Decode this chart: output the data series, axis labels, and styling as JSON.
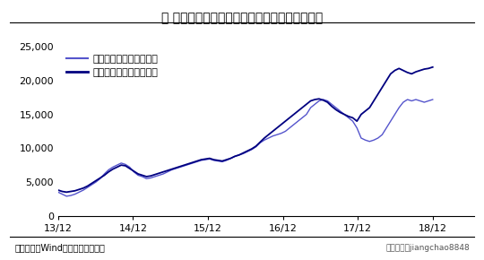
{
  "title": "图 外资持有中国股票和债券金额（亿元人民币）",
  "xtick_labels": [
    "13/12",
    "14/12",
    "15/12",
    "16/12",
    "17/12",
    "18/12"
  ],
  "legend_stocks": "境外机构和个人持有股票",
  "legend_bonds": "境外机构和个人持有债券",
  "source_text": "资料来源：Wind，海通证券研究所",
  "watermark": "一微信号：jiangchao8848",
  "color_stocks": "#5555cc",
  "color_bonds": "#000080",
  "background_color": "#ffffff",
  "title_fontsize": 10,
  "legend_fontsize": 8,
  "tick_fontsize": 8,
  "ylim": [
    0,
    25000
  ],
  "yticks": [
    0,
    5000,
    10000,
    15000,
    20000,
    25000
  ],
  "xlim": [
    0,
    100
  ],
  "xtick_positions": [
    0,
    18,
    36,
    54,
    72,
    90
  ],
  "stocks_data": [
    3500,
    3200,
    2900,
    3000,
    3200,
    3500,
    3800,
    4200,
    4600,
    5000,
    5500,
    6200,
    6800,
    7200,
    7500,
    7800,
    7600,
    7200,
    6500,
    6000,
    5800,
    5500,
    5600,
    5800,
    6000,
    6200,
    6500,
    6800,
    7000,
    7200,
    7400,
    7600,
    7800,
    8000,
    8200,
    8300,
    8400,
    8200,
    8100,
    8000,
    8200,
    8500,
    8800,
    9000,
    9200,
    9500,
    9800,
    10200,
    10800,
    11200,
    11500,
    11800,
    12000,
    12200,
    12500,
    13000,
    13500,
    14000,
    14500,
    15000,
    16000,
    16500,
    17000,
    17200,
    17000,
    16500,
    16000,
    15500,
    15000,
    14500,
    14000,
    13000,
    11500,
    11200,
    11000,
    11200,
    11500,
    12000,
    13000,
    14000,
    15000,
    16000,
    16800,
    17200,
    17000,
    17200,
    17000,
    16800,
    17000,
    17200
  ],
  "bonds_data": [
    3800,
    3600,
    3500,
    3600,
    3700,
    3900,
    4100,
    4400,
    4800,
    5200,
    5600,
    6000,
    6500,
    6900,
    7200,
    7500,
    7400,
    7000,
    6600,
    6200,
    6000,
    5800,
    5900,
    6100,
    6300,
    6500,
    6700,
    6900,
    7100,
    7300,
    7500,
    7700,
    7900,
    8100,
    8300,
    8400,
    8500,
    8300,
    8200,
    8100,
    8300,
    8500,
    8800,
    9000,
    9300,
    9600,
    9900,
    10300,
    10900,
    11500,
    12000,
    12500,
    13000,
    13500,
    14000,
    14500,
    15000,
    15500,
    16000,
    16500,
    17000,
    17200,
    17300,
    17100,
    16800,
    16200,
    15700,
    15300,
    15000,
    14700,
    14500,
    14000,
    15000,
    15500,
    16000,
    17000,
    18000,
    19000,
    20000,
    21000,
    21500,
    21800,
    21500,
    21200,
    21000,
    21300,
    21500,
    21700,
    21800,
    22000
  ]
}
